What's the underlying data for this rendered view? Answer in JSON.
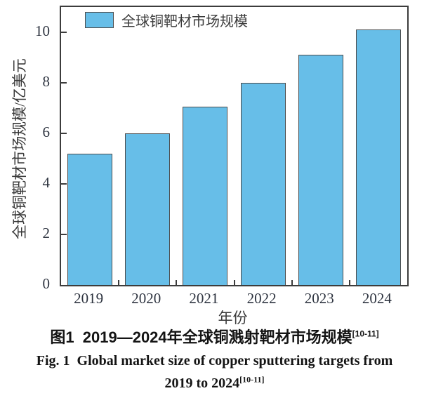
{
  "chart_data": {
    "type": "bar",
    "title": "",
    "categories": [
      "2019",
      "2020",
      "2021",
      "2022",
      "2023",
      "2024"
    ],
    "values": [
      5.2,
      6.0,
      7.05,
      8.0,
      9.1,
      10.1
    ],
    "legend_label": "全球铜靶材市场规模",
    "xlabel": "年份",
    "ylabel": "全球铜靶材市场规模/亿美元",
    "ylim": [
      0,
      11
    ],
    "yticks": [
      0,
      2,
      4,
      6,
      8,
      10
    ],
    "legend_position": "top-left-inside",
    "grid": false,
    "colors": {
      "bar_fill": "#67BEE8",
      "bar_edge": "#4D4D4D",
      "axis": "#3C3C3C",
      "tick_text": "#2E3440"
    }
  },
  "captions": {
    "chinese_text": "图1  2019—2024年全球铜溅射靶材市场规模",
    "english_line1": "Fig. 1  Global market size of copper sputtering targets from",
    "english_line2": "2019 to 2024",
    "citation": "[10-11]"
  }
}
